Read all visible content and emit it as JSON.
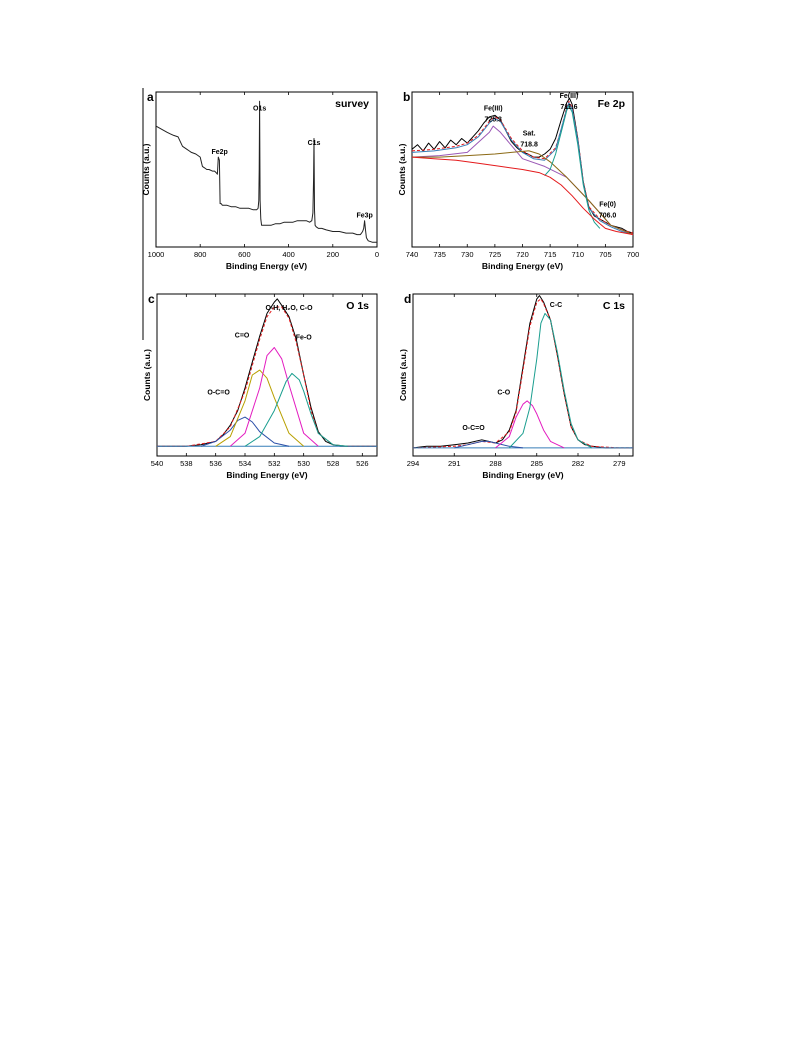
{
  "chart_data": [
    {
      "type": "line",
      "panel": "a",
      "title": "survey",
      "xlabel": "Binding Energy (eV)",
      "ylabel": "Counts (a.u.)",
      "xlim": [
        1000,
        0
      ],
      "ylim": [
        0,
        100
      ],
      "xticks": [
        1000,
        800,
        600,
        400,
        200,
        0
      ],
      "annotations": [
        {
          "text": "O1s",
          "x": 531,
          "y": 86
        },
        {
          "text": "C1s",
          "x": 285,
          "y": 64
        },
        {
          "text": "Fe2p",
          "x": 712,
          "y": 58
        },
        {
          "text": "Fe3p",
          "x": 56,
          "y": 17
        }
      ],
      "series": [
        {
          "color": "#222222",
          "width": 1.0,
          "dashed": false,
          "x": [
            1000,
            975,
            950,
            935,
            920,
            900,
            880,
            860,
            850,
            840,
            820,
            800,
            790,
            780,
            770,
            760,
            745,
            735,
            728,
            722,
            718,
            713,
            710,
            705,
            700,
            690,
            680,
            660,
            640,
            620,
            600,
            580,
            560,
            545,
            538,
            535,
            533,
            531,
            529,
            526,
            522,
            515,
            500,
            480,
            460,
            440,
            420,
            400,
            380,
            360,
            340,
            320,
            305,
            295,
            290,
            287,
            285,
            283,
            280,
            275,
            265,
            250,
            230,
            200,
            170,
            140,
            110,
            90,
            75,
            70,
            65,
            60,
            56,
            52,
            48,
            40,
            20,
            0
          ],
          "y": [
            78,
            76,
            74,
            73,
            72,
            71,
            65,
            63,
            62,
            61,
            60,
            58,
            52,
            51,
            50,
            50,
            49,
            49,
            48,
            47,
            58,
            56,
            28,
            28,
            27,
            27,
            27,
            26,
            26,
            25,
            25,
            25,
            24,
            24,
            25,
            30,
            50,
            94,
            30,
            18,
            14,
            14,
            14,
            14,
            15,
            15,
            16,
            16,
            16,
            17,
            17,
            17,
            16,
            17,
            22,
            45,
            70,
            24,
            14,
            13,
            12,
            12,
            11,
            10,
            10,
            9,
            9,
            8,
            8,
            9,
            10,
            12,
            17,
            11,
            6,
            4,
            3,
            3
          ]
        }
      ]
    },
    {
      "type": "line",
      "panel": "b",
      "title": "Fe 2p",
      "xlabel": "Binding Energy (eV)",
      "ylabel": "Counts (a.u.)",
      "xlim": [
        740,
        700
      ],
      "ylim": [
        0,
        100
      ],
      "xticks": [
        740,
        735,
        730,
        725,
        720,
        715,
        710,
        705,
        700
      ],
      "annotations": [
        {
          "text": "Fe(III)",
          "x": 725.3,
          "y": 88
        },
        {
          "text": "725.3",
          "x": 725.3,
          "y": 81
        },
        {
          "text": "Sat.",
          "x": 718.8,
          "y": 72
        },
        {
          "text": "718.8",
          "x": 718.8,
          "y": 65
        },
        {
          "text": "Fe(III)",
          "x": 711.6,
          "y": 96
        },
        {
          "text": "711.6",
          "x": 711.6,
          "y": 89
        },
        {
          "text": "Fe(0)",
          "x": 704.6,
          "y": 26
        },
        {
          "text": "706.0",
          "x": 704.6,
          "y": 19
        }
      ],
      "series": [
        {
          "color": "#000000",
          "width": 1.0,
          "dashed": false,
          "x": [
            740,
            739,
            738,
            737,
            736,
            735,
            734,
            733,
            732,
            731,
            730,
            729,
            728,
            727,
            726,
            725,
            724,
            723,
            722,
            721,
            720,
            719,
            718,
            717,
            716,
            715,
            714,
            713,
            712,
            711.5,
            711,
            710,
            709,
            708,
            707,
            706,
            705,
            704,
            703,
            702,
            701,
            700
          ],
          "y": [
            63,
            66,
            62,
            67,
            63,
            68,
            64,
            69,
            66,
            70,
            67,
            71,
            75,
            80,
            84,
            85,
            82,
            75,
            68,
            64,
            61,
            60,
            58,
            58,
            60,
            63,
            70,
            82,
            93,
            96,
            92,
            70,
            42,
            26,
            20,
            18,
            16,
            14,
            13,
            12,
            10,
            9
          ]
        },
        {
          "color": "#e41a1c",
          "width": 1.0,
          "dashed": true,
          "x": [
            740,
            736,
            732,
            730,
            728,
            726,
            725,
            724,
            722,
            720,
            718,
            716,
            714,
            713,
            712,
            711.6,
            711,
            710,
            709,
            708,
            706,
            704,
            702,
            700
          ],
          "y": [
            62,
            63,
            65,
            67,
            72,
            81,
            84,
            82,
            70,
            62,
            58,
            57,
            64,
            76,
            90,
            94,
            90,
            70,
            42,
            26,
            18,
            14,
            11,
            9
          ]
        },
        {
          "color": "#377eb8",
          "width": 1.0,
          "dashed": false,
          "x": [
            740,
            736,
            732,
            730,
            728,
            726,
            725,
            724,
            722,
            720,
            718,
            716,
            714,
            712,
            711.6,
            711,
            710,
            709,
            708,
            706,
            704,
            702,
            700
          ],
          "y": [
            61,
            62,
            64,
            66,
            71,
            80,
            83,
            81,
            69,
            61,
            57,
            56,
            63,
            89,
            93,
            89,
            69,
            41,
            25,
            17,
            13,
            10,
            8
          ]
        },
        {
          "color": "#9b59b6",
          "width": 1.0,
          "dashed": false,
          "x": [
            740,
            735,
            730,
            726,
            725.3,
            724,
            720,
            716,
            712,
            708,
            704,
            700
          ],
          "y": [
            58,
            59,
            61,
            74,
            78,
            74,
            57,
            52,
            45,
            30,
            14,
            8
          ]
        },
        {
          "color": "#8b6914",
          "width": 1.0,
          "dashed": false,
          "x": [
            740,
            735,
            730,
            725,
            722,
            719,
            718.8,
            717,
            715,
            712,
            708,
            704,
            700
          ],
          "y": [
            58,
            58,
            59,
            60,
            61,
            62,
            62,
            60,
            55,
            45,
            30,
            14,
            8
          ]
        },
        {
          "color": "#1a9e8f",
          "width": 1.0,
          "dashed": false,
          "x": [
            716,
            715,
            714,
            713,
            712,
            711.6,
            711,
            710,
            709,
            708,
            707,
            706
          ],
          "y": [
            46,
            50,
            60,
            74,
            88,
            91,
            87,
            66,
            40,
            24,
            16,
            12
          ]
        },
        {
          "color": "#e41a1c",
          "width": 1.0,
          "dashed": false,
          "x": [
            740,
            736,
            732,
            728,
            724,
            720,
            717,
            715,
            713,
            711,
            709,
            707,
            705,
            703,
            700
          ],
          "y": [
            58,
            57,
            56,
            54,
            52,
            50,
            48,
            45,
            40,
            33,
            25,
            18,
            12,
            10,
            8
          ]
        }
      ]
    },
    {
      "type": "line",
      "panel": "c",
      "title": "O 1s",
      "xlabel": "Binding Energy (eV)",
      "ylabel": "Counts (a.u.)",
      "xlim": [
        540,
        525
      ],
      "ylim": [
        0,
        100
      ],
      "xticks": [
        540,
        538,
        536,
        534,
        532,
        530,
        528,
        526
      ],
      "annotations": [
        {
          "text": "O-H, H₂O, C-O",
          "x": 531.0,
          "y": 90
        },
        {
          "text": "C=O",
          "x": 534.2,
          "y": 73
        },
        {
          "text": "Fe-O",
          "x": 530.0,
          "y": 72
        },
        {
          "text": "O-C=O",
          "x": 535.8,
          "y": 38
        }
      ],
      "series": [
        {
          "color": "#000000",
          "width": 1.0,
          "dashed": false,
          "x": [
            540,
            539,
            538,
            537,
            536,
            535.5,
            535,
            534.5,
            534,
            533.5,
            533,
            532.5,
            532,
            531.8,
            531.5,
            531,
            530.5,
            530,
            529.5,
            529,
            528.5,
            528,
            527.5,
            527,
            526,
            525
          ],
          "y": [
            6,
            6,
            6,
            7,
            9,
            13,
            19,
            28,
            42,
            58,
            74,
            88,
            95,
            97,
            93,
            86,
            72,
            50,
            30,
            15,
            9,
            7,
            6,
            6,
            6,
            6
          ]
        },
        {
          "color": "#e41a1c",
          "width": 1.0,
          "dashed": true,
          "x": [
            540,
            538,
            536,
            535,
            534,
            533,
            532.5,
            532,
            531.5,
            531,
            530.5,
            530,
            529.5,
            529,
            528,
            527,
            525
          ],
          "y": [
            6,
            6,
            9,
            18,
            40,
            72,
            86,
            92,
            92,
            85,
            70,
            50,
            28,
            14,
            7,
            6,
            6
          ]
        },
        {
          "color": "#377eb8",
          "width": 1.0,
          "dashed": false,
          "x": [
            540,
            538,
            536,
            535,
            534,
            533,
            532,
            531,
            530,
            529,
            528,
            526,
            525
          ],
          "y": [
            6,
            6,
            6,
            6,
            6,
            6,
            6,
            6,
            6,
            6,
            6,
            6,
            6
          ]
        },
        {
          "color": "#2b4fa8",
          "width": 1.0,
          "dashed": false,
          "x": [
            537,
            536,
            535,
            534.5,
            534,
            533.5,
            533,
            532,
            531
          ],
          "y": [
            6,
            9,
            16,
            22,
            24,
            21,
            15,
            8,
            6
          ]
        },
        {
          "color": "#b8a000",
          "width": 1.0,
          "dashed": false,
          "x": [
            536,
            535,
            534,
            533.5,
            533,
            532.5,
            532,
            531,
            530
          ],
          "y": [
            6,
            12,
            34,
            50,
            53,
            48,
            36,
            14,
            6
          ]
        },
        {
          "color": "#e31cc0",
          "width": 1.0,
          "dashed": false,
          "x": [
            535,
            534,
            533,
            532.5,
            532,
            531.5,
            531,
            530,
            529
          ],
          "y": [
            6,
            14,
            42,
            62,
            67,
            60,
            44,
            14,
            6
          ]
        },
        {
          "color": "#1a9e8f",
          "width": 1.0,
          "dashed": false,
          "x": [
            534,
            533,
            532,
            531.2,
            530.8,
            530.3,
            530,
            529.5,
            529,
            528,
            527
          ],
          "y": [
            6,
            12,
            28,
            46,
            51,
            47,
            40,
            26,
            14,
            7,
            6
          ]
        }
      ]
    },
    {
      "type": "line",
      "panel": "d",
      "title": "C 1s",
      "xlabel": "Binding Energy (eV)",
      "ylabel": "Counts (a.u.)",
      "xlim": [
        294,
        278
      ],
      "ylim": [
        0,
        100
      ],
      "xticks": [
        294,
        291,
        288,
        285,
        282,
        279
      ],
      "annotations": [
        {
          "text": "C-C",
          "x": 283.6,
          "y": 92
        },
        {
          "text": "C-O",
          "x": 287.4,
          "y": 38
        },
        {
          "text": "O-C=O",
          "x": 289.6,
          "y": 16
        }
      ],
      "series": [
        {
          "color": "#000000",
          "width": 1.0,
          "dashed": false,
          "x": [
            294,
            293,
            292,
            291,
            290,
            289,
            288.5,
            288,
            287.5,
            287,
            286.5,
            286,
            285.5,
            285,
            284.8,
            284.5,
            284,
            283.5,
            283,
            282.5,
            282,
            281.5,
            281,
            280,
            279,
            278
          ],
          "y": [
            5,
            6,
            6,
            7,
            8,
            10,
            9,
            8,
            10,
            16,
            28,
            55,
            82,
            97,
            99,
            95,
            84,
            62,
            38,
            18,
            10,
            7,
            6,
            5,
            5,
            5
          ]
        },
        {
          "color": "#e41a1c",
          "width": 1.0,
          "dashed": true,
          "x": [
            294,
            291,
            290,
            289,
            288,
            287,
            286.5,
            286,
            285.5,
            285,
            284.7,
            284.5,
            284,
            283.5,
            283,
            282.5,
            282,
            281,
            279,
            278
          ],
          "y": [
            5,
            6,
            7,
            9,
            8,
            15,
            27,
            53,
            80,
            95,
            97,
            94,
            84,
            62,
            38,
            18,
            10,
            6,
            5,
            5
          ]
        },
        {
          "color": "#377eb8",
          "width": 1.0,
          "dashed": false,
          "x": [
            294,
            292,
            290,
            288,
            286,
            284,
            282,
            280,
            278
          ],
          "y": [
            5,
            5,
            5,
            5,
            5,
            5,
            5,
            5,
            5
          ]
        },
        {
          "color": "#2b4fa8",
          "width": 1.0,
          "dashed": false,
          "x": [
            291,
            290,
            289,
            288.5,
            288,
            287,
            286
          ],
          "y": [
            5,
            7,
            9,
            9,
            8,
            6,
            5
          ]
        },
        {
          "color": "#e31cc0",
          "width": 1.0,
          "dashed": false,
          "x": [
            288,
            287,
            286.5,
            286,
            285.7,
            285.3,
            285,
            284.5,
            284,
            283
          ],
          "y": [
            5,
            12,
            24,
            32,
            34,
            31,
            26,
            16,
            9,
            5
          ]
        },
        {
          "color": "#1a9e8f",
          "width": 1.0,
          "dashed": false,
          "x": [
            287,
            286,
            285.5,
            285,
            284.7,
            284.4,
            284,
            283.5,
            283,
            282.5,
            282,
            281
          ],
          "y": [
            5,
            14,
            30,
            60,
            82,
            88,
            84,
            64,
            40,
            20,
            10,
            5
          ]
        }
      ]
    }
  ]
}
